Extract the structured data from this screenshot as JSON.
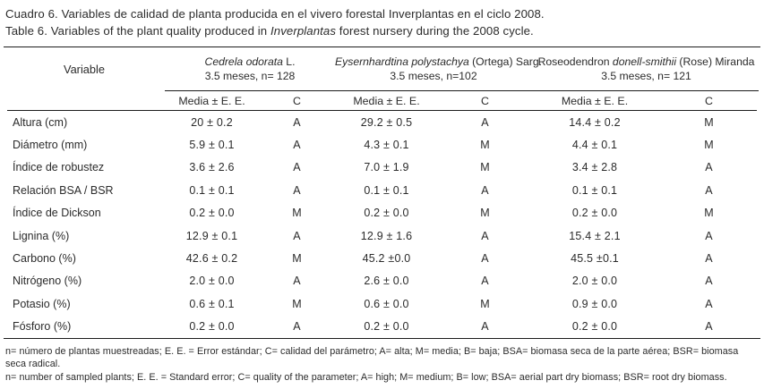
{
  "page": {
    "title_es": "Cuadro 6. Variables de calidad de planta producida en el vivero forestal Inverplantas en el ciclo 2008.",
    "title_en_prefix": "Table 6. Variables of the plant quality produced in ",
    "title_en_italic": "Inverplantas",
    "title_en_suffix": " forest nursery during the 2008 cycle."
  },
  "table": {
    "variable_header": "Variable",
    "subheader": {
      "media": "Media ± E. E.",
      "c": "C"
    },
    "groups": [
      {
        "prefix": "",
        "italic": "Cedrela odorata",
        "suffix": " L.",
        "subtitle": "3.5 meses, n= 128"
      },
      {
        "prefix": "",
        "italic": "Eysernhardtina polystachya",
        "suffix": " (Ortega) Sarg.",
        "subtitle": "3.5 meses, n=102"
      },
      {
        "prefix": "Roseodendron ",
        "italic": "donell-smithii",
        "suffix": " (Rose) Miranda",
        "subtitle": "3.5 meses, n= 121"
      }
    ],
    "rows": [
      {
        "variable": "Altura (cm)",
        "cols": [
          "20 ± 0.2",
          "A",
          "29.2 ± 0.5",
          "A",
          "14.4 ± 0.2",
          "M"
        ]
      },
      {
        "variable": "Diámetro (mm)",
        "cols": [
          "5.9 ± 0.1",
          "A",
          "4.3 ± 0.1",
          "M",
          "4.4 ± 0.1",
          "M"
        ]
      },
      {
        "variable": "Índice de robustez",
        "cols": [
          "3.6 ± 2.6",
          "A",
          "7.0 ± 1.9",
          "M",
          "3.4 ± 2.8",
          "A"
        ]
      },
      {
        "variable": "Relación BSA / BSR",
        "cols": [
          "0.1 ± 0.1",
          "A",
          "0.1 ± 0.1",
          "A",
          "0.1 ± 0.1",
          "A"
        ]
      },
      {
        "variable": "Índice de Dickson",
        "cols": [
          "0.2 ± 0.0",
          "M",
          "0.2 ± 0.0",
          "M",
          "0.2 ± 0.0",
          "M"
        ]
      },
      {
        "variable": "Lignina (%)",
        "cols": [
          "12.9 ± 0.1",
          "A",
          "12.9 ± 1.6",
          "A",
          "15.4 ± 2.1",
          "A"
        ]
      },
      {
        "variable": "Carbono (%)",
        "cols": [
          "42.6 ± 0.2",
          "M",
          "45.2 ±0.0",
          "A",
          "45.5 ±0.1",
          "A"
        ]
      },
      {
        "variable": "Nitrógeno (%)",
        "cols": [
          "2.0 ± 0.0",
          "A",
          "2.6 ± 0.0",
          "A",
          "2.0 ± 0.0",
          "A"
        ]
      },
      {
        "variable": "Potasio (%)",
        "cols": [
          "0.6 ± 0.1",
          "M",
          "0.6 ± 0.0",
          "M",
          "0.9 ± 0.0",
          "A"
        ]
      },
      {
        "variable": "Fósforo (%)",
        "cols": [
          "0.2 ± 0.0",
          "A",
          "0.2 ± 0.0",
          "A",
          "0.2 ± 0.0",
          "A"
        ]
      }
    ],
    "footnote_es": "n= número de plantas muestreadas; E. E. = Error estándar; C= calidad del parámetro; A= alta; M= media; B= baja; BSA= biomasa seca de la parte aérea; BSR= biomasa seca radical.",
    "footnote_en": "n= number of sampled plants; E. E. = Standard error; C= quality of the parameter; A= high; M= medium; B= low; BSA= aerial part dry biomass; BSR= root dry biomass."
  }
}
